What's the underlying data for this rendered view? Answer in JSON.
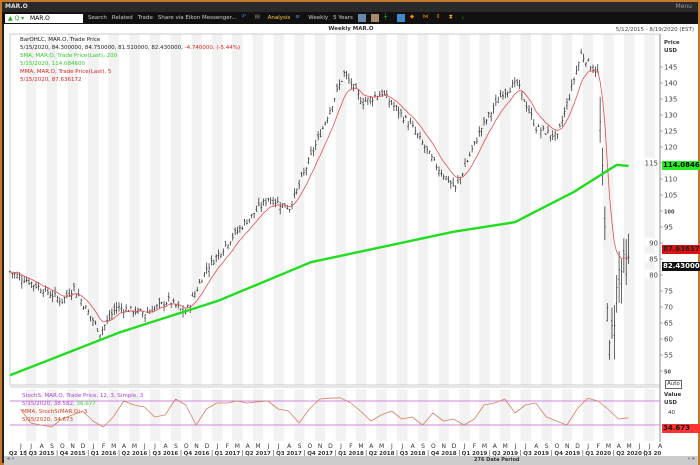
{
  "window": {
    "title": "MAR.O",
    "menu": "Menu"
  },
  "toolbar": {
    "ric": "MAR.O",
    "items": [
      "Search",
      "Related",
      "Trade",
      "Share via Eikon Messenger...",
      "Analysis",
      "Weekly",
      "5 Years"
    ]
  },
  "chart": {
    "subtitle": "Weekly MAR.O",
    "date_range": "5/12/2015 - 8/19/2020 (EST)",
    "legend": {
      "bar_title": "BarOHLC, MAR.O, Trade Price",
      "bar_values": "5/15/2020, 84.300000, 84.750000, 81.510000, 82.430000,",
      "bar_change": "-4.740000, (-5.44%)",
      "sma_title": "SMA, MAR.O, Trade Price(Last),  200",
      "sma_value": "5/15/2020, 114.084600",
      "mma_title": "MMA, MAR.O, Trade Price(Last),  5",
      "mma_value": "5/15/2020, 87.636172"
    },
    "price_axis": {
      "title": "Price",
      "unit": "USD",
      "ticks": [
        145,
        140,
        135,
        130,
        125,
        120,
        115,
        110,
        105,
        100,
        95,
        90,
        85,
        80,
        75,
        70,
        65,
        60,
        55,
        50
      ],
      "auto": "Auto"
    },
    "tags": {
      "sma": "114.0846",
      "mma": "87.63617",
      "last": "82.43000"
    },
    "colors": {
      "bars": "#222222",
      "sma": "#22dd22",
      "mma": "#e05050",
      "stoch": "#d88060",
      "stoch_band": "#cc88dd",
      "accent": "#c8782a"
    },
    "stoch_legend": {
      "title": "StochS, MAR.O, Trade Price,  12, 3, Simple, 3",
      "value_a": "5/15/2020, 38.582,",
      "value_b": "36.677",
      "mma_title": "MMA, StochS(MAR.O),  3",
      "mma_value": "5/15/2020, 34.673"
    },
    "stoch_axis": {
      "title": "Value",
      "unit": "USD",
      "tick": "40",
      "tag": "34.673"
    },
    "months": [
      "J",
      "J",
      "A",
      "S",
      "O",
      "N",
      "D",
      "J",
      "F",
      "M",
      "A",
      "M",
      "J",
      "J",
      "A",
      "S",
      "O",
      "N",
      "D",
      "J",
      "F",
      "M",
      "A",
      "M",
      "J",
      "J",
      "A",
      "S",
      "O",
      "N",
      "D",
      "J",
      "F",
      "M",
      "A",
      "M",
      "J",
      "J",
      "A",
      "S",
      "O",
      "N",
      "D",
      "J",
      "F",
      "M",
      "A",
      "M",
      "J",
      "J",
      "A",
      "S",
      "O",
      "N",
      "D",
      "J",
      "F",
      "M",
      "A",
      "M",
      "J",
      "J",
      "A"
    ],
    "quarters": [
      "Q2 15",
      "Q3 2015",
      "Q4 2015",
      "Q1 2016",
      "Q2 2016",
      "Q3 2016",
      "Q4 2016",
      "Q1 2017",
      "Q2 2017",
      "Q3 2017",
      "Q4 2017",
      "Q1 2018",
      "Q2 2018",
      "Q3 2018",
      "Q4 2018",
      "Q1 2019",
      "Q2 2019",
      "Q3 2019",
      "Q4 2019",
      "Q1 2020",
      "Q2 2020",
      "Q3 20"
    ],
    "data_period": "276 Data Period"
  },
  "chart_data": {
    "type": "ohlc",
    "x_range": [
      "2015-05-12",
      "2020-08-19"
    ],
    "y_range": [
      45,
      150
    ],
    "price_path_approx": [
      [
        "2015-05-15",
        81
      ],
      [
        "2015-07-10",
        78
      ],
      [
        "2015-08-28",
        75
      ],
      [
        "2015-10-16",
        72
      ],
      [
        "2015-11-20",
        76
      ],
      [
        "2016-02-05",
        62
      ],
      [
        "2016-03-25",
        70
      ],
      [
        "2016-06-17",
        68
      ],
      [
        "2016-08-26",
        72
      ],
      [
        "2016-10-14",
        68
      ],
      [
        "2016-12-16",
        82
      ],
      [
        "2017-03-10",
        93
      ],
      [
        "2017-06-16",
        104
      ],
      [
        "2017-08-18",
        101
      ],
      [
        "2017-11-24",
        126
      ],
      [
        "2018-01-26",
        143
      ],
      [
        "2018-03-23",
        134
      ],
      [
        "2018-05-18",
        137
      ],
      [
        "2018-08-17",
        126
      ],
      [
        "2018-10-26",
        114
      ],
      [
        "2018-12-21",
        107
      ],
      [
        "2019-03-08",
        126
      ],
      [
        "2019-05-10",
        137
      ],
      [
        "2019-06-21",
        140
      ],
      [
        "2019-08-16",
        126
      ],
      [
        "2019-10-18",
        123
      ],
      [
        "2019-12-27",
        149
      ],
      [
        "2020-02-14",
        143
      ],
      [
        "2020-03-06",
        93
      ],
      [
        "2020-03-20",
        55
      ],
      [
        "2020-04-17",
        81
      ],
      [
        "2020-05-15",
        82.43
      ]
    ],
    "sma200_approx": [
      [
        "2015-05-15",
        48.7
      ],
      [
        "2016-04-01",
        62
      ],
      [
        "2017-01-20",
        72
      ],
      [
        "2017-10-20",
        84
      ],
      [
        "2018-12-14",
        93.5
      ],
      [
        "2019-06-14",
        96.5
      ],
      [
        "2019-12-06",
        106
      ],
      [
        "2020-04-10",
        114.4
      ],
      [
        "2020-05-15",
        114.08
      ]
    ],
    "stoch_monthly_approx": [
      60,
      25,
      20,
      15,
      35,
      45,
      55,
      30,
      15,
      40,
      80,
      70,
      65,
      40,
      45,
      85,
      70,
      20,
      60,
      75,
      75,
      80,
      75,
      78,
      80,
      60,
      55,
      25,
      60,
      85,
      87,
      88,
      75,
      55,
      30,
      45,
      55,
      35,
      40,
      20,
      50,
      30,
      35,
      20,
      35,
      70,
      75,
      85,
      50,
      70,
      75,
      40,
      30,
      20,
      60,
      87,
      80,
      60,
      35,
      38
    ],
    "stoch_bands": [
      80,
      20
    ]
  }
}
